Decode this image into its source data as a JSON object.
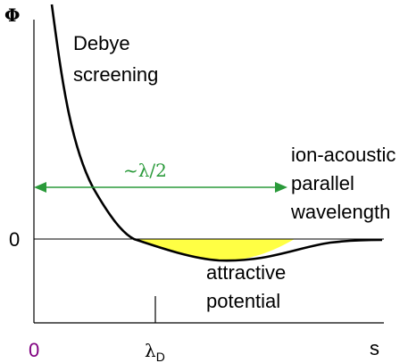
{
  "diagram": {
    "y_axis_label": "Φ",
    "x_axis_label": "s",
    "x_origin_label": "0",
    "y_zero_label": "0",
    "lambda_d_label": "λ",
    "lambda_d_sub": "D",
    "debye_line1": "Debye",
    "debye_line2": "screening",
    "ion_line1": "ion-acoustic",
    "ion_line2": "parallel",
    "ion_line3": "wavelength",
    "half_wavelength_label": "~λ/2",
    "attractive_line1": "attractive",
    "attractive_line2": "potential"
  },
  "colors": {
    "curve": "#000000",
    "fill": "#ffff44",
    "arrow": "#2a9a3a",
    "origin_label": "#800080"
  }
}
